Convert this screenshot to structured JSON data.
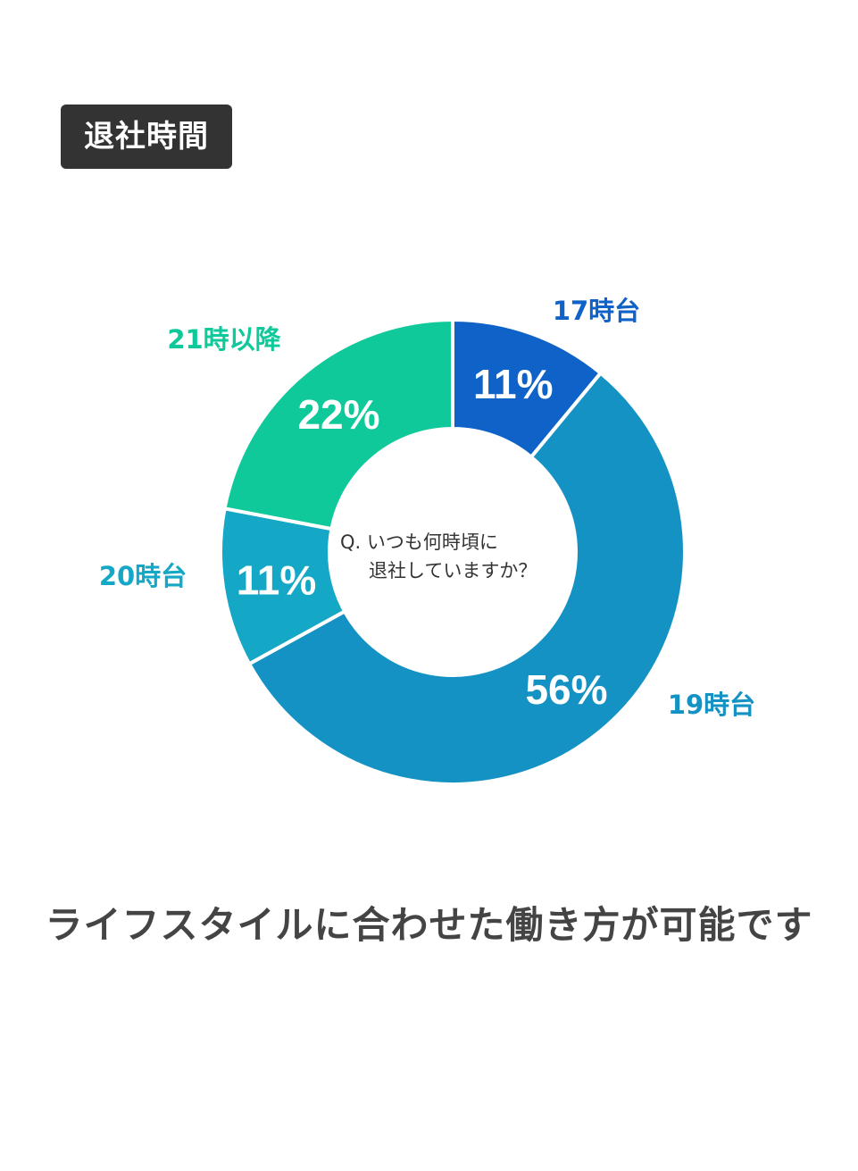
{
  "header": {
    "title": "退社時間"
  },
  "chart_data": {
    "type": "pie",
    "variant": "donut",
    "question_lines": [
      "Q. いつも何時頃に",
      "退社していますか？"
    ],
    "slices": [
      {
        "category": "17時台",
        "value": 11,
        "label": "11%",
        "color": "#0f63c8"
      },
      {
        "category": "19時台",
        "value": 56,
        "label": "56%",
        "color": "#1592c4"
      },
      {
        "category": "20時台",
        "value": 11,
        "label": "11%",
        "color": "#14a8c6"
      },
      {
        "category": "21時以降",
        "value": 22,
        "label": "22%",
        "color": "#10c99a"
      }
    ]
  },
  "footer": {
    "caption": "ライフスタイルに合わせた働き方が可能です"
  }
}
